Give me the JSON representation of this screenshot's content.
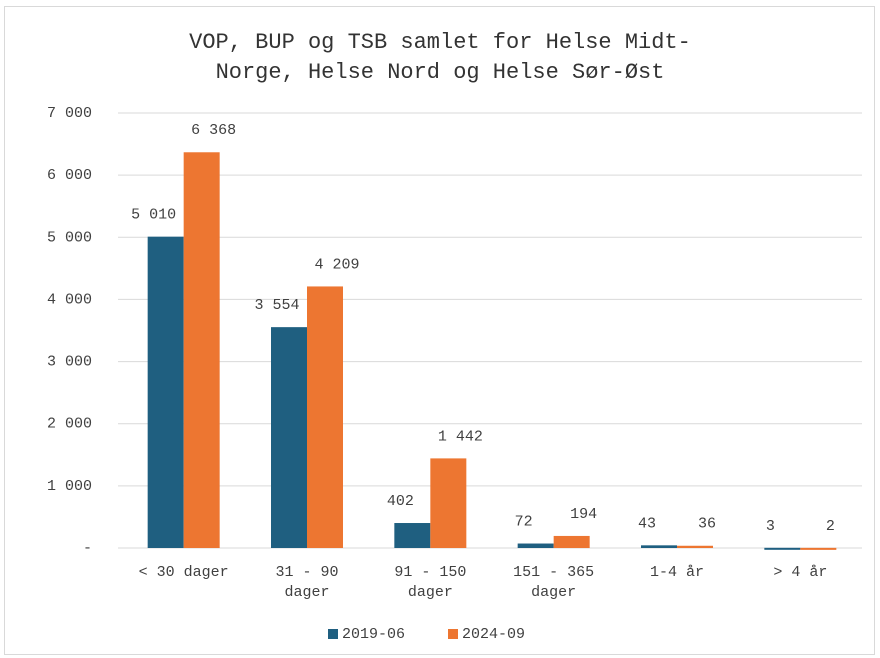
{
  "chart_data": {
    "type": "bar",
    "title": "VOP, BUP og TSB samlet for Helse Midt-Norge, Helse Nord og Helse Sør-Øst",
    "categories": [
      "< 30 dager",
      "31 - 90 dager",
      "91 - 150 dager",
      "151 - 365 dager",
      "1-4 år",
      "> 4 år"
    ],
    "series": [
      {
        "name": "2019-06",
        "color": "#1f5f80",
        "values": [
          5010,
          3554,
          402,
          72,
          43,
          3
        ],
        "value_labels": [
          "5 010",
          "3 554",
          "402",
          "72",
          "43",
          "3"
        ]
      },
      {
        "name": "2024-09",
        "color": "#ed7631",
        "values": [
          6368,
          4209,
          1442,
          194,
          36,
          2
        ],
        "value_labels": [
          "6 368",
          "4 209",
          "1 442",
          "194",
          "36",
          "2"
        ]
      }
    ],
    "ylim": [
      0,
      7000
    ],
    "yticks": [
      {
        "value": 0,
        "label": "-"
      },
      {
        "value": 1000,
        "label": "1 000"
      },
      {
        "value": 2000,
        "label": "2 000"
      },
      {
        "value": 3000,
        "label": "3 000"
      },
      {
        "value": 4000,
        "label": "4 000"
      },
      {
        "value": 5000,
        "label": "5 000"
      },
      {
        "value": 6000,
        "label": "6 000"
      },
      {
        "value": 7000,
        "label": "7 000"
      }
    ],
    "grid": true,
    "legend": "bottom"
  }
}
